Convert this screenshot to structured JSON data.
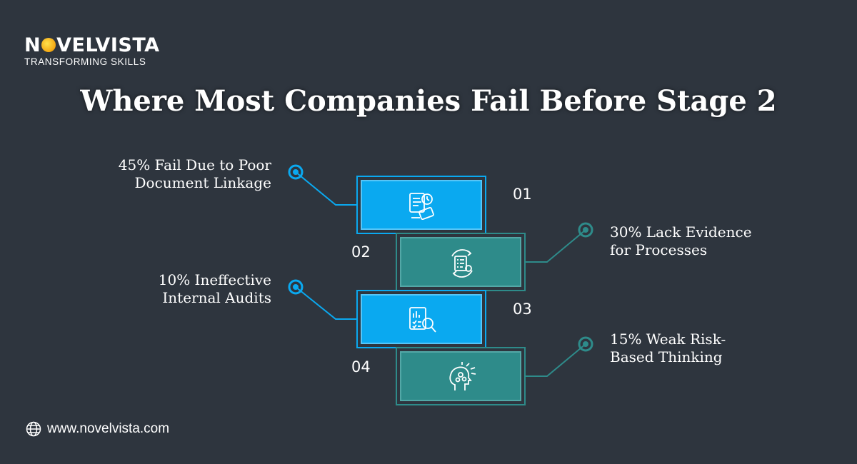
{
  "logo": {
    "text_before": "N",
    "text_after": "VELVISTA",
    "tagline": "TRANSFORMING SKILLS"
  },
  "title": "Where Most Companies Fail Before Stage 2",
  "steps": [
    {
      "number": "01",
      "label_line1": "45% Fail Due to Poor",
      "label_line2": "Document Linkage",
      "color": "#0aa9f0",
      "icon": "document-search-icon"
    },
    {
      "number": "02",
      "label_line1": "30% Lack Evidence",
      "label_line2": "for Processes",
      "color": "#2e8b8a",
      "icon": "process-checklist-icon"
    },
    {
      "number": "03",
      "label_line1": "10% Ineffective",
      "label_line2": "Internal Audits",
      "color": "#0aa9f0",
      "icon": "audit-report-icon"
    },
    {
      "number": "04",
      "label_line1": "15% Weak Risk-",
      "label_line2": "Based Thinking",
      "color": "#2e8b8a",
      "icon": "brain-thinking-icon"
    }
  ],
  "footer": {
    "website": "www.novelvista.com",
    "icon": "globe-icon"
  }
}
